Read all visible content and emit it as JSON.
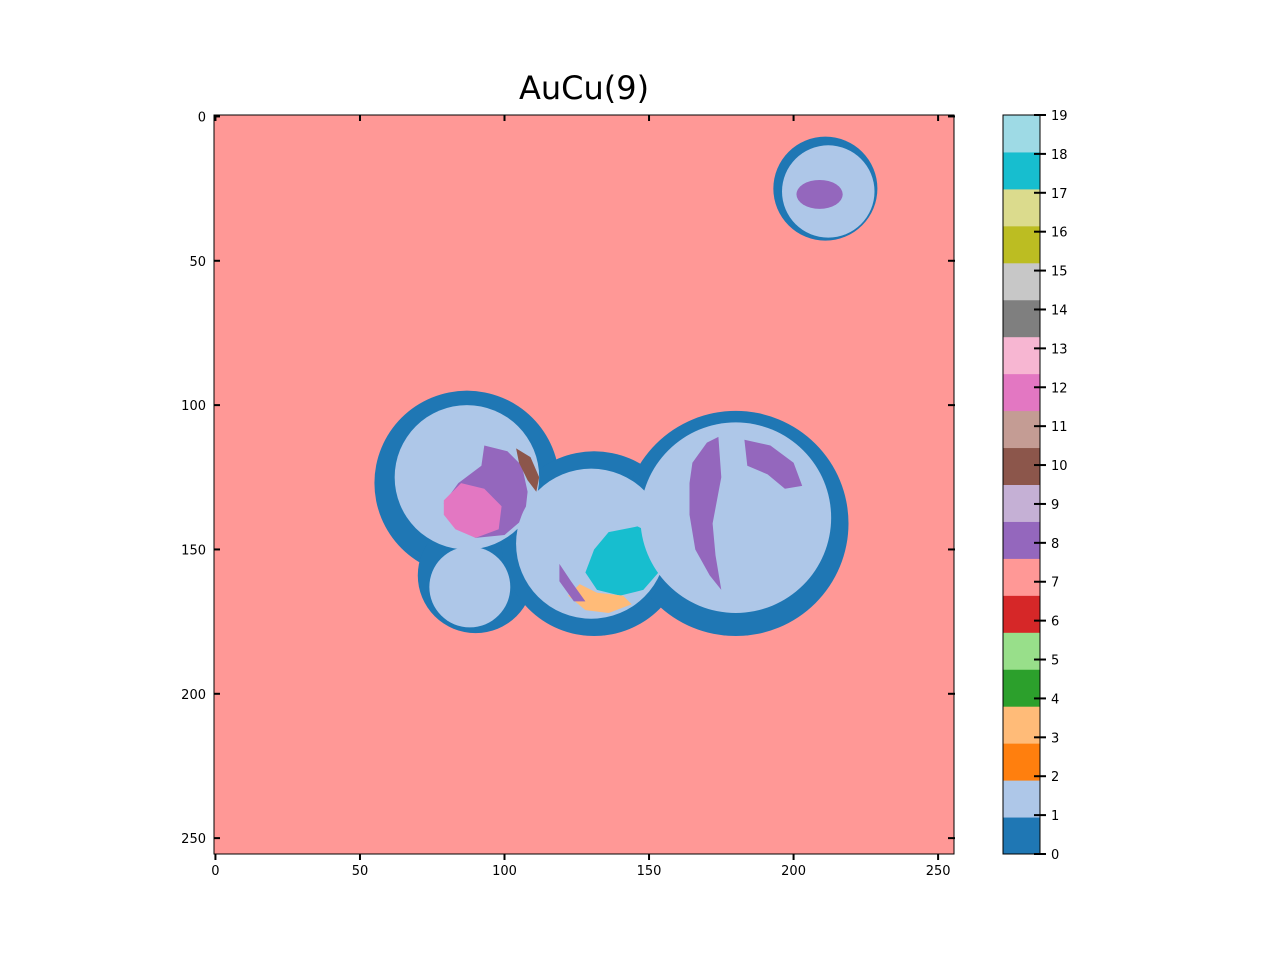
{
  "chart_data": {
    "type": "heatmap",
    "title": "AuCu(9)",
    "image_shape": [
      256,
      256
    ],
    "x_ticks": [
      0,
      50,
      100,
      150,
      200,
      250
    ],
    "y_ticks": [
      0,
      50,
      100,
      150,
      200,
      250
    ],
    "xlim": [
      -0.5,
      255.5
    ],
    "ylim": [
      255.5,
      -0.5
    ],
    "colormap": "tab20",
    "colorbar": {
      "ticks": [
        0,
        1,
        2,
        3,
        4,
        5,
        6,
        7,
        8,
        9,
        10,
        11,
        12,
        13,
        14,
        15,
        16,
        17,
        18,
        19
      ],
      "colors": [
        "#1f77b4",
        "#aec7e8",
        "#ff7f0e",
        "#ffbb78",
        "#2ca02c",
        "#98df8a",
        "#d62728",
        "#ff9896",
        "#9467bd",
        "#c5b0d5",
        "#8c564b",
        "#c49c94",
        "#e377c2",
        "#f7b6d2",
        "#7f7f7f",
        "#c7c7c7",
        "#bcbd22",
        "#dbdb8d",
        "#17becf",
        "#9edae5"
      ]
    },
    "background_class": 7,
    "regions": [
      {
        "shape": "circle",
        "cx": 211,
        "cy": 25,
        "r": 18,
        "class": 0
      },
      {
        "shape": "circle",
        "cx": 212,
        "cy": 26,
        "r": 16,
        "class": 1
      },
      {
        "shape": "ellipse",
        "cx": 209,
        "cy": 27,
        "rx": 8,
        "ry": 5,
        "class": 8
      },
      {
        "shape": "circle",
        "cx": 87,
        "cy": 127,
        "r": 32,
        "class": 0
      },
      {
        "shape": "circle",
        "cx": 90,
        "cy": 159,
        "r": 20,
        "class": 0
      },
      {
        "shape": "circle",
        "cx": 131,
        "cy": 148,
        "r": 32,
        "class": 0
      },
      {
        "shape": "circle",
        "cx": 180,
        "cy": 141,
        "r": 39,
        "class": 0
      },
      {
        "shape": "circle",
        "cx": 87,
        "cy": 125,
        "r": 25,
        "class": 1
      },
      {
        "shape": "polygon",
        "points": [
          [
            93,
            114
          ],
          [
            101,
            116
          ],
          [
            106,
            121
          ],
          [
            108,
            130
          ],
          [
            107,
            139
          ],
          [
            100,
            145
          ],
          [
            90,
            146
          ],
          [
            83,
            142
          ],
          [
            79,
            134
          ],
          [
            84,
            127
          ],
          [
            92,
            121
          ]
        ],
        "class": 8
      },
      {
        "shape": "polygon",
        "points": [
          [
            79,
            133
          ],
          [
            85,
            127
          ],
          [
            93,
            129
          ],
          [
            99,
            135
          ],
          [
            98,
            143
          ],
          [
            90,
            146
          ],
          [
            83,
            143
          ],
          [
            79,
            138
          ]
        ],
        "class": 12
      },
      {
        "shape": "polygon",
        "points": [
          [
            104,
            115
          ],
          [
            109,
            118
          ],
          [
            112,
            125
          ],
          [
            111,
            130
          ],
          [
            108,
            126
          ],
          [
            105,
            120
          ]
        ],
        "class": 10
      },
      {
        "shape": "circle",
        "cx": 88,
        "cy": 163,
        "r": 14,
        "class": 1
      },
      {
        "shape": "circle",
        "cx": 130,
        "cy": 148,
        "r": 26,
        "class": 1
      },
      {
        "shape": "polygon",
        "points": [
          [
            136,
            144
          ],
          [
            146,
            142
          ],
          [
            154,
            146
          ],
          [
            155,
            156
          ],
          [
            148,
            164
          ],
          [
            140,
            166
          ],
          [
            132,
            164
          ],
          [
            128,
            158
          ],
          [
            131,
            150
          ]
        ],
        "class": 18
      },
      {
        "shape": "polygon",
        "points": [
          [
            122,
            166
          ],
          [
            128,
            171
          ],
          [
            136,
            172
          ],
          [
            144,
            169
          ],
          [
            141,
            166
          ],
          [
            132,
            165
          ],
          [
            126,
            162
          ]
        ],
        "class": 3
      },
      {
        "shape": "polygon",
        "points": [
          [
            119,
            155
          ],
          [
            123,
            161
          ],
          [
            128,
            168
          ],
          [
            124,
            168
          ],
          [
            119,
            161
          ]
        ],
        "class": 8
      },
      {
        "shape": "circle",
        "cx": 180,
        "cy": 139,
        "r": 33,
        "class": 1
      },
      {
        "shape": "polygon",
        "points": [
          [
            165,
            120
          ],
          [
            170,
            113
          ],
          [
            174,
            111
          ],
          [
            175,
            125
          ],
          [
            172,
            141
          ],
          [
            173,
            152
          ],
          [
            175,
            164
          ],
          [
            171,
            159
          ],
          [
            166,
            150
          ],
          [
            164,
            138
          ],
          [
            164,
            127
          ]
        ],
        "class": 8
      },
      {
        "shape": "polygon",
        "points": [
          [
            183,
            112
          ],
          [
            192,
            114
          ],
          [
            200,
            120
          ],
          [
            203,
            128
          ],
          [
            197,
            129
          ],
          [
            191,
            124
          ],
          [
            184,
            121
          ]
        ],
        "class": 8
      }
    ]
  }
}
